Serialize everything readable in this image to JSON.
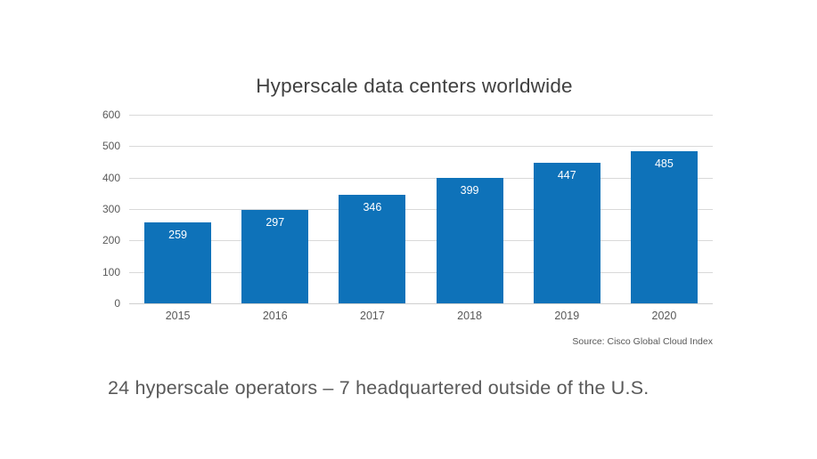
{
  "chart": {
    "title": "Hyperscale data centers worldwide",
    "source": "Source: Cisco Global Cloud Index"
  },
  "caption": {
    "text": "24 hyperscale operators – 7 headquartered outside of the U.S."
  },
  "chart_data": {
    "type": "bar",
    "title": "Hyperscale data centers worldwide",
    "categories": [
      "2015",
      "2016",
      "2017",
      "2018",
      "2019",
      "2020"
    ],
    "values": [
      259,
      297,
      346,
      399,
      447,
      485
    ],
    "xlabel": "",
    "ylabel": "",
    "ylim": [
      0,
      600
    ],
    "yticks": [
      0,
      100,
      200,
      300,
      400,
      500,
      600
    ],
    "grid": true,
    "legend": "none",
    "bar_color": "#0e72b9",
    "value_label_color": "#ffffff",
    "gridline_color": "#d9d9d9",
    "axis_label_color": "#595959",
    "source": "Source: Cisco Global Cloud Index"
  }
}
